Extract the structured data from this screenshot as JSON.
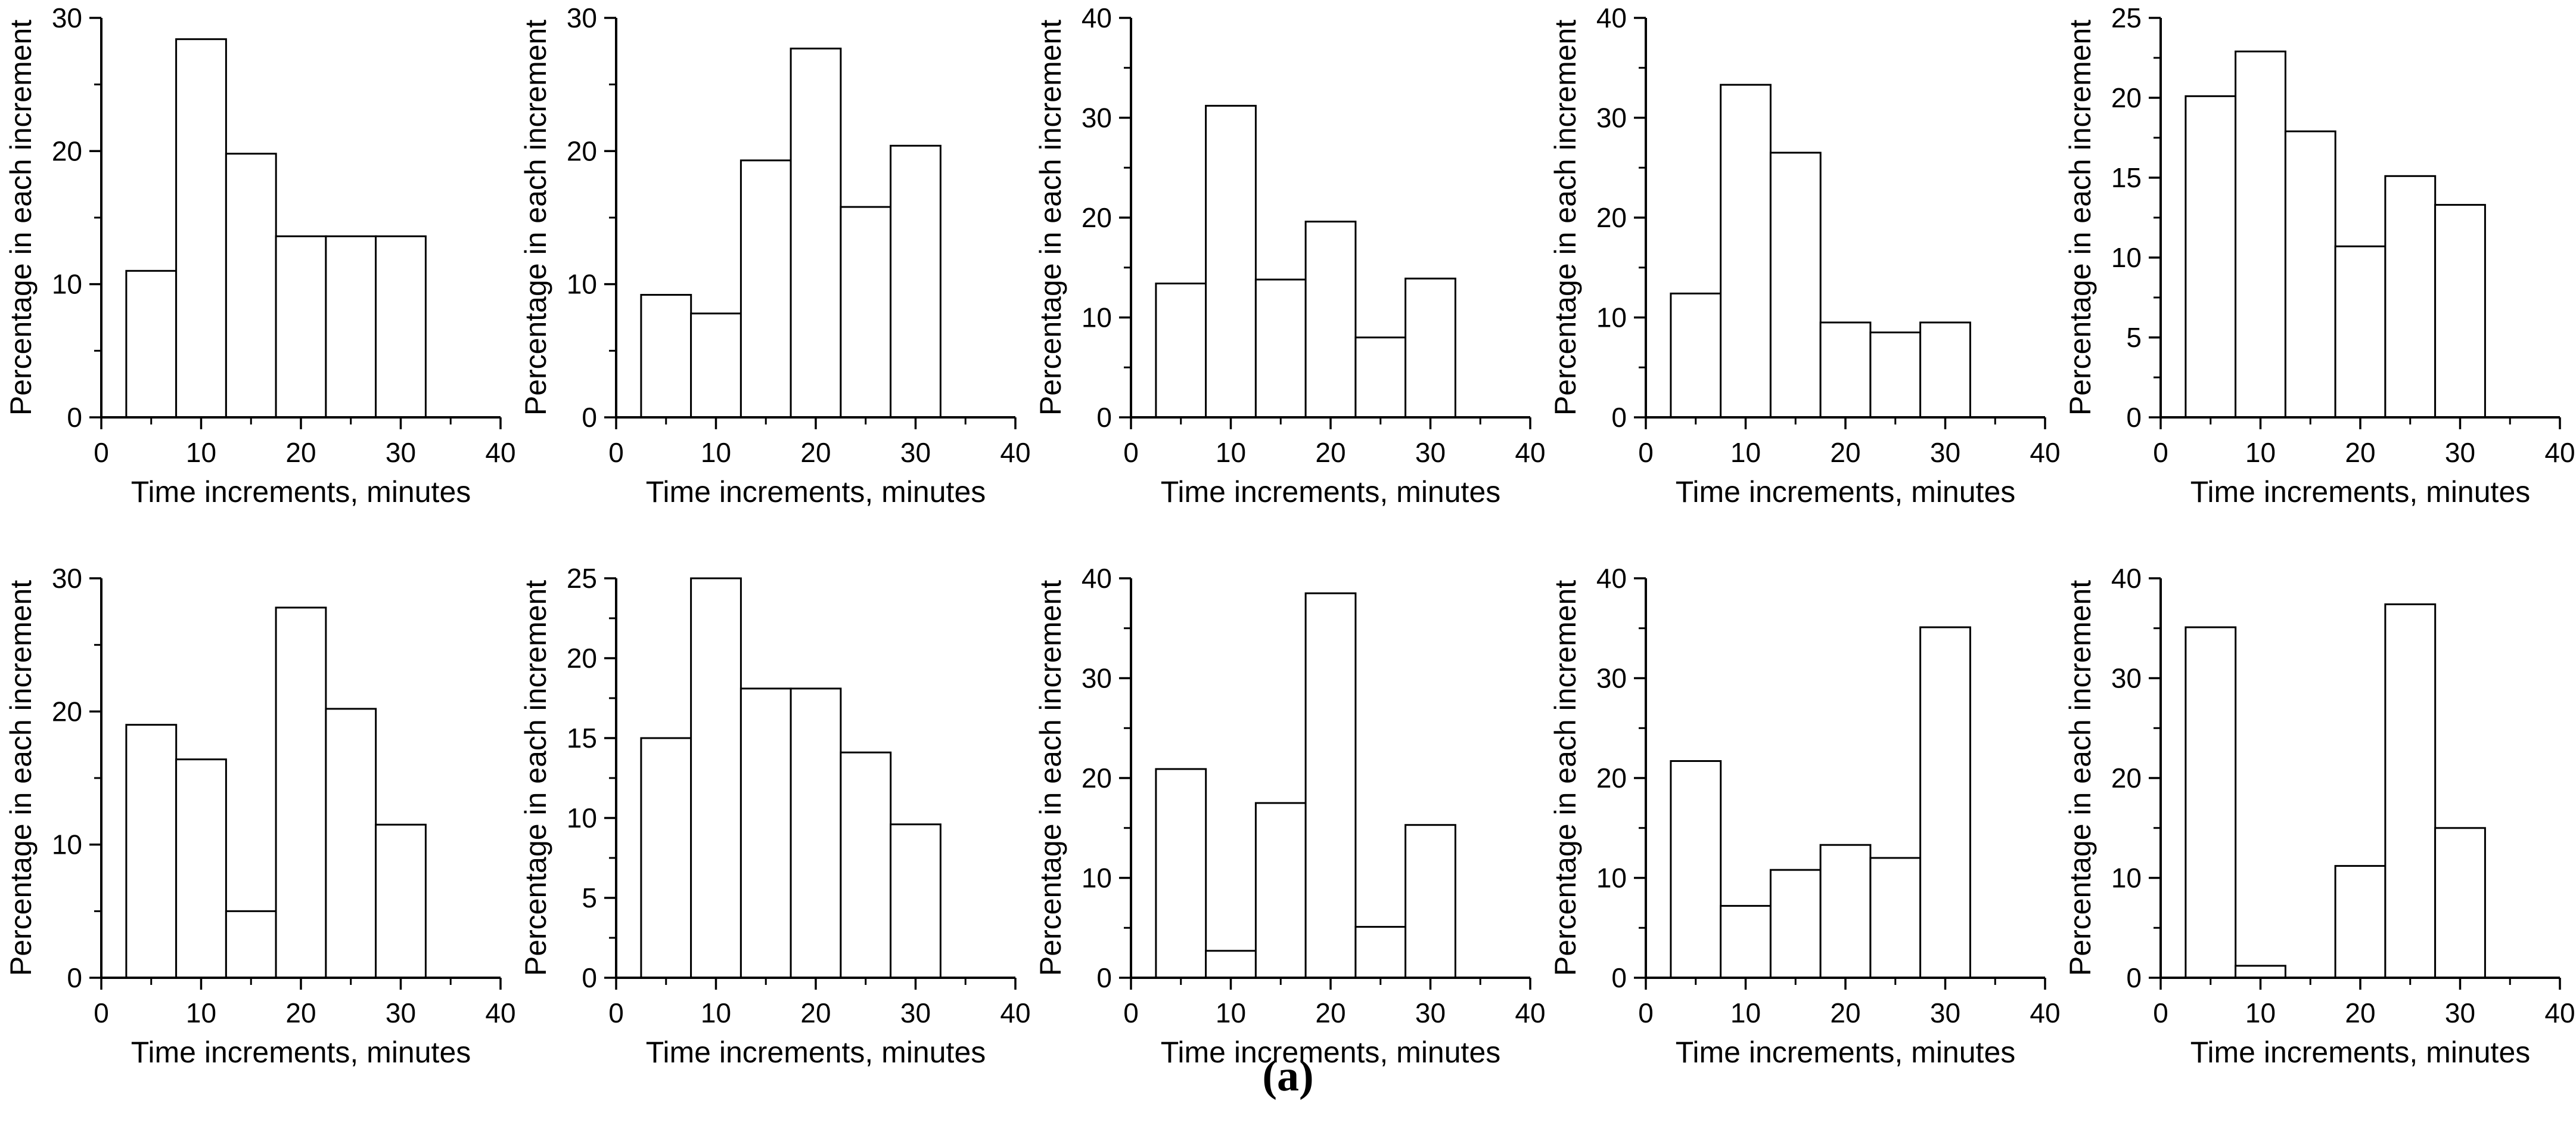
{
  "caption": "(a)",
  "colors": {
    "background": "#ffffff",
    "ink": "#000000",
    "bar_fill": "#ffffff",
    "bar_stroke": "#000000"
  },
  "chart_data": [
    {
      "type": "bar",
      "row": 1,
      "col": 1,
      "xlabel": "Time increments, minutes",
      "ylabel": "Percentage in each increment",
      "bin_centers": [
        5,
        10,
        15,
        20,
        25,
        30
      ],
      "bin_width": 5,
      "values": [
        11.0,
        28.4,
        19.8,
        13.6,
        13.6,
        13.6
      ],
      "xlim": [
        0,
        40
      ],
      "xticks": [
        0,
        10,
        20,
        30,
        40
      ],
      "x_minor_step": 5,
      "ylim": [
        0,
        30
      ],
      "yticks": [
        0,
        10,
        20,
        30
      ],
      "y_minor_step": 5
    },
    {
      "type": "bar",
      "row": 1,
      "col": 2,
      "xlabel": "Time increments, minutes",
      "ylabel": "Percentage in each increment",
      "bin_centers": [
        5,
        10,
        15,
        20,
        25,
        30
      ],
      "bin_width": 5,
      "values": [
        9.2,
        7.8,
        19.3,
        27.7,
        15.8,
        20.4
      ],
      "xlim": [
        0,
        40
      ],
      "xticks": [
        0,
        10,
        20,
        30,
        40
      ],
      "x_minor_step": 5,
      "ylim": [
        0,
        30
      ],
      "yticks": [
        0,
        10,
        20,
        30
      ],
      "y_minor_step": 5
    },
    {
      "type": "bar",
      "row": 1,
      "col": 3,
      "xlabel": "Time increments, minutes",
      "ylabel": "Percentage in each increment",
      "bin_centers": [
        5,
        10,
        15,
        20,
        25,
        30
      ],
      "bin_width": 5,
      "values": [
        13.4,
        31.2,
        13.8,
        19.6,
        8.0,
        13.9
      ],
      "xlim": [
        0,
        40
      ],
      "xticks": [
        0,
        10,
        20,
        30,
        40
      ],
      "x_minor_step": 5,
      "ylim": [
        0,
        40
      ],
      "yticks": [
        0,
        10,
        20,
        30,
        40
      ],
      "y_minor_step": 5
    },
    {
      "type": "bar",
      "row": 1,
      "col": 4,
      "xlabel": "Time increments, minutes",
      "ylabel": "Percentage in each increment",
      "bin_centers": [
        5,
        10,
        15,
        20,
        25,
        30
      ],
      "bin_width": 5,
      "values": [
        12.4,
        33.3,
        26.5,
        9.5,
        8.5,
        9.5
      ],
      "xlim": [
        0,
        40
      ],
      "xticks": [
        0,
        10,
        20,
        30,
        40
      ],
      "x_minor_step": 5,
      "ylim": [
        0,
        40
      ],
      "yticks": [
        0,
        10,
        20,
        30,
        40
      ],
      "y_minor_step": 5
    },
    {
      "type": "bar",
      "row": 1,
      "col": 5,
      "xlabel": "Time increments, minutes",
      "ylabel": "Percentage in each increment",
      "bin_centers": [
        5,
        10,
        15,
        20,
        25,
        30
      ],
      "bin_width": 5,
      "values": [
        20.1,
        22.9,
        17.9,
        10.7,
        15.1,
        13.3
      ],
      "xlim": [
        0,
        40
      ],
      "xticks": [
        0,
        10,
        20,
        30,
        40
      ],
      "x_minor_step": 5,
      "ylim": [
        0,
        25
      ],
      "yticks": [
        0,
        5,
        10,
        15,
        20,
        25
      ],
      "y_minor_step": 2.5
    },
    {
      "type": "bar",
      "row": 2,
      "col": 1,
      "xlabel": "Time increments, minutes",
      "ylabel": "Percentage in each increment",
      "bin_centers": [
        5,
        10,
        15,
        20,
        25,
        30
      ],
      "bin_width": 5,
      "values": [
        19.0,
        16.4,
        5.0,
        27.8,
        20.2,
        11.5
      ],
      "xlim": [
        0,
        40
      ],
      "xticks": [
        0,
        10,
        20,
        30,
        40
      ],
      "x_minor_step": 5,
      "ylim": [
        0,
        30
      ],
      "yticks": [
        0,
        10,
        20,
        30
      ],
      "y_minor_step": 5
    },
    {
      "type": "bar",
      "row": 2,
      "col": 2,
      "xlabel": "Time increments, minutes",
      "ylabel": "Percentage in each increment",
      "bin_centers": [
        5,
        10,
        15,
        20,
        25,
        30
      ],
      "bin_width": 5,
      "values": [
        15.0,
        25.0,
        18.1,
        18.1,
        14.1,
        9.6
      ],
      "xlim": [
        0,
        40
      ],
      "xticks": [
        0,
        10,
        20,
        30,
        40
      ],
      "x_minor_step": 5,
      "ylim": [
        0,
        25
      ],
      "yticks": [
        0,
        5,
        10,
        15,
        20,
        25
      ],
      "y_minor_step": 2.5
    },
    {
      "type": "bar",
      "row": 2,
      "col": 3,
      "xlabel": "Time increments, minutes",
      "ylabel": "Percentage in each increment",
      "bin_centers": [
        5,
        10,
        15,
        20,
        25,
        30
      ],
      "bin_width": 5,
      "values": [
        20.9,
        2.7,
        17.5,
        38.5,
        5.1,
        15.3
      ],
      "xlim": [
        0,
        40
      ],
      "xticks": [
        0,
        10,
        20,
        30,
        40
      ],
      "x_minor_step": 5,
      "ylim": [
        0,
        40
      ],
      "yticks": [
        0,
        10,
        20,
        30,
        40
      ],
      "y_minor_step": 5
    },
    {
      "type": "bar",
      "row": 2,
      "col": 4,
      "xlabel": "Time increments, minutes",
      "ylabel": "Percentage in each increment",
      "bin_centers": [
        5,
        10,
        15,
        20,
        25,
        30
      ],
      "bin_width": 5,
      "values": [
        21.7,
        7.2,
        10.8,
        13.3,
        12.0,
        35.1
      ],
      "xlim": [
        0,
        40
      ],
      "xticks": [
        0,
        10,
        20,
        30,
        40
      ],
      "x_minor_step": 5,
      "ylim": [
        0,
        40
      ],
      "yticks": [
        0,
        10,
        20,
        30,
        40
      ],
      "y_minor_step": 5
    },
    {
      "type": "bar",
      "row": 2,
      "col": 5,
      "xlabel": "Time increments, minutes",
      "ylabel": "Percentage in each increment",
      "bin_centers": [
        5,
        10,
        15,
        20,
        25,
        30
      ],
      "bin_width": 5,
      "values": [
        35.1,
        1.2,
        0,
        11.2,
        37.4,
        15.0
      ],
      "xlim": [
        0,
        40
      ],
      "xticks": [
        0,
        10,
        20,
        30,
        40
      ],
      "x_minor_step": 5,
      "ylim": [
        0,
        40
      ],
      "yticks": [
        0,
        10,
        20,
        30,
        40
      ],
      "y_minor_step": 5
    }
  ]
}
